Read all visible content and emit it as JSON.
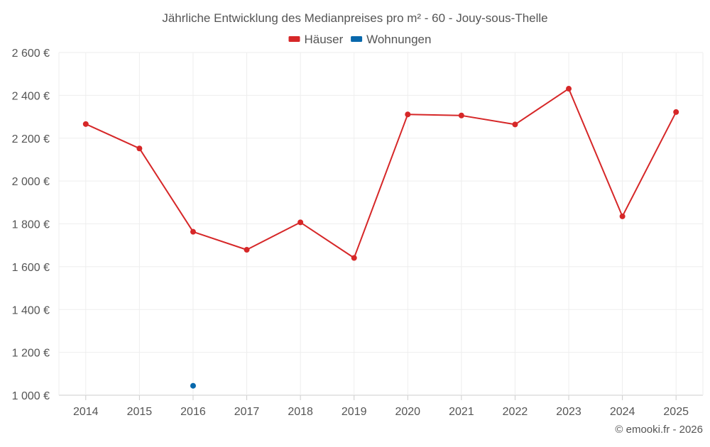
{
  "chart_data": {
    "type": "line",
    "title": "Jährliche Entwicklung des Medianpreises pro m² - 60 - Jouy-sous-Thelle",
    "xlabel": "",
    "ylabel": "",
    "categories": [
      "2014",
      "2015",
      "2016",
      "2017",
      "2018",
      "2019",
      "2020",
      "2021",
      "2022",
      "2023",
      "2024",
      "2025"
    ],
    "ylim": [
      1000,
      2600
    ],
    "yticks": [
      1000,
      1200,
      1400,
      1600,
      1800,
      2000,
      2200,
      2400,
      2600
    ],
    "ytick_labels": [
      "1 000 €",
      "1 200 €",
      "1 400 €",
      "1 600 €",
      "1 800 €",
      "2 000 €",
      "2 200 €",
      "2 400 €",
      "2 600 €"
    ],
    "grid": true,
    "legend_position": "top-center",
    "series": [
      {
        "name": "Häuser",
        "color": "#d62728",
        "values": [
          2266,
          2152,
          1763,
          1679,
          1807,
          1641,
          2311,
          2306,
          2264,
          2431,
          1835,
          2322
        ]
      },
      {
        "name": "Wohnungen",
        "color": "#0868ac",
        "values": [
          null,
          null,
          1044,
          null,
          null,
          null,
          null,
          null,
          null,
          null,
          null,
          null
        ]
      }
    ]
  },
  "credit": "© emooki.fr - 2026"
}
